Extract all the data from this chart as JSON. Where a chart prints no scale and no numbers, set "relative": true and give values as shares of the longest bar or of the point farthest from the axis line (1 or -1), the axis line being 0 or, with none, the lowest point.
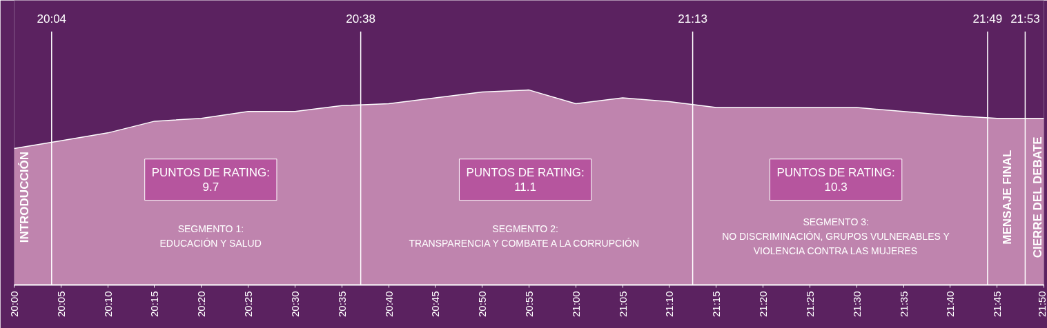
{
  "chart_data": {
    "type": "area",
    "relative": true,
    "color": "#e0a6c8",
    "grid": false,
    "x": [
      20.0,
      20.0833,
      20.1667,
      20.25,
      20.3333,
      20.4167,
      20.5,
      20.5833,
      20.6667,
      20.75,
      20.8333,
      20.9167,
      21.0,
      21.0833,
      21.1667,
      21.25,
      21.3333,
      21.4167,
      21.5,
      21.5833,
      21.6667,
      21.75,
      21.8333
    ],
    "values": [
      0.7,
      0.74,
      0.78,
      0.84,
      0.855,
      0.89,
      0.89,
      0.92,
      0.93,
      0.96,
      0.99,
      1.0,
      0.93,
      0.96,
      0.94,
      0.91,
      0.91,
      0.91,
      0.91,
      0.89,
      0.87,
      0.855,
      0.855
    ],
    "xlim": [
      20.0,
      21.8333
    ],
    "xticks": [
      {
        "value": 20.0,
        "label": "20:00"
      },
      {
        "value": 20.0833,
        "label": "20:05"
      },
      {
        "value": 20.1667,
        "label": "20:10"
      },
      {
        "value": 20.25,
        "label": "20:15"
      },
      {
        "value": 20.3333,
        "label": "20:20"
      },
      {
        "value": 20.4167,
        "label": "20:25"
      },
      {
        "value": 20.5,
        "label": "20:30"
      },
      {
        "value": 20.5833,
        "label": "20:35"
      },
      {
        "value": 20.6667,
        "label": "20:40"
      },
      {
        "value": 20.75,
        "label": "20:45"
      },
      {
        "value": 20.8333,
        "label": "20:50"
      },
      {
        "value": 20.9167,
        "label": "20:55"
      },
      {
        "value": 21.0,
        "label": "21:00"
      },
      {
        "value": 21.0833,
        "label": "21:05"
      },
      {
        "value": 21.1667,
        "label": "21:10"
      },
      {
        "value": 21.25,
        "label": "21:15"
      },
      {
        "value": 21.3333,
        "label": "21:20"
      },
      {
        "value": 21.4167,
        "label": "21:25"
      },
      {
        "value": 21.5,
        "label": "21:30"
      },
      {
        "value": 21.5833,
        "label": "21:35"
      },
      {
        "value": 21.6667,
        "label": "21:40"
      },
      {
        "value": 21.75,
        "label": "21:45"
      },
      {
        "value": 21.8333,
        "label": "21:50"
      }
    ],
    "ref_lines": [
      {
        "axis": "x",
        "value": 20.0667,
        "color": "#ffffff"
      },
      {
        "axis": "x",
        "value": 20.617,
        "color": "#ffffff"
      },
      {
        "axis": "x",
        "value": 21.208,
        "color": "#ffffff"
      },
      {
        "axis": "x",
        "value": 21.733,
        "color": "#ffffff"
      },
      {
        "axis": "x",
        "value": 21.8,
        "color": "#ffffff"
      }
    ],
    "annotations": [
      "20:04",
      "20:38",
      "21:13",
      "21:49",
      "21:53",
      "INTRODUCCIÓN",
      "PUNTOS DE RATING:\n9.7",
      "SEGMENTO 1:\nEDUCACIÓN Y SALUD",
      "PUNTOS DE RATING:\n11.1",
      "SEGMENTO 2:\nTRANSPARENCIA Y COMBATE A LA CORRUPCIÓN",
      "PUNTOS DE RATING:\n10.3",
      "SEGMENTO 3:\nNO DISCRIMINACIÓN, GRUPOS VULNERABLES Y\nVIOLENCIA CONTRA LAS MUJERES",
      "MENSAJE FINAL",
      "CIERRE DEL DEBATE"
    ]
  }
}
